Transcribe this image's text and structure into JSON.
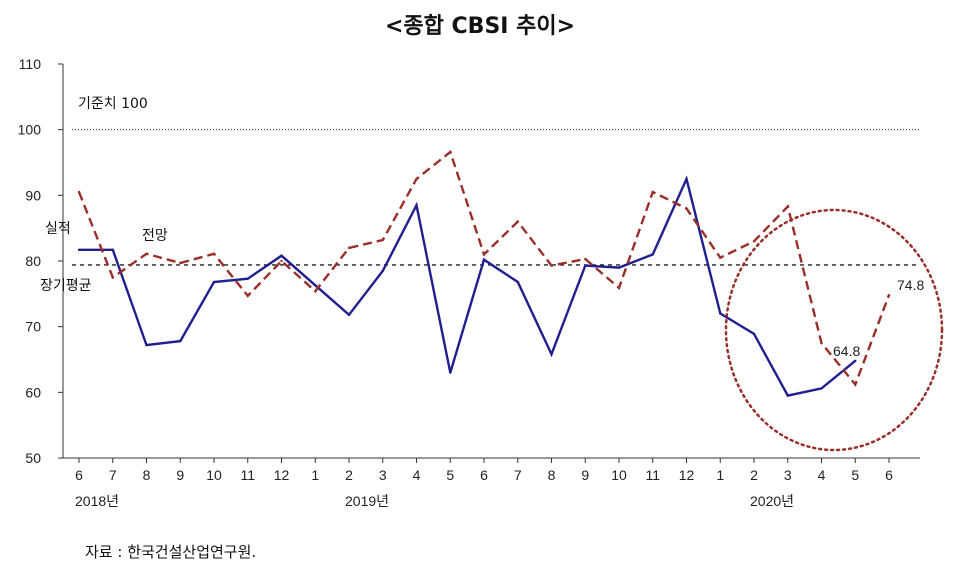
{
  "title": "<종합 CBSI 추이>",
  "source": "자료 : 한국건설산업연구원.",
  "chart_data": {
    "type": "line",
    "ylim": [
      50,
      110
    ],
    "yticks": [
      "50",
      "60",
      "70",
      "80",
      "90",
      "100",
      "110"
    ],
    "categories": [
      "6",
      "7",
      "8",
      "9",
      "10",
      "11",
      "12",
      "1",
      "2",
      "3",
      "4",
      "5",
      "6",
      "7",
      "8",
      "9",
      "10",
      "11",
      "12",
      "1",
      "2",
      "3",
      "4",
      "5",
      "6"
    ],
    "year_labels": [
      {
        "index": 0,
        "text": "2018년"
      },
      {
        "index": 8,
        "text": "2019년"
      },
      {
        "index": 20,
        "text": "2020년"
      }
    ],
    "series": [
      {
        "name": "실적",
        "color": "#1f1f8f",
        "dash": "solid",
        "values": [
          81.7,
          81.7,
          67.2,
          67.8,
          76.8,
          77.3,
          80.8,
          76.3,
          71.8,
          78.5,
          88.5,
          63.0,
          80.2,
          76.8,
          65.8,
          79.3,
          79.0,
          81.0,
          92.5,
          72.0,
          68.9,
          59.5,
          60.6,
          64.8,
          null
        ]
      },
      {
        "name": "전망",
        "color": "#9a2f2a",
        "dash": "dashed",
        "values": [
          90.5,
          77.5,
          81.1,
          79.7,
          81.1,
          74.7,
          80.0,
          75.4,
          82.0,
          83.2,
          92.5,
          96.6,
          81.0,
          86.0,
          79.3,
          80.3,
          75.9,
          90.5,
          88.0,
          80.5,
          83.0,
          88.3,
          67.5,
          61.2,
          74.8
        ]
      }
    ],
    "reference_lines": [
      {
        "label": "기준치 100",
        "value": 100,
        "style": "dotted"
      },
      {
        "label": "장기평균",
        "value": 79.4,
        "style": "dashed"
      }
    ],
    "annotations": [
      "74.8",
      "64.8"
    ],
    "grid": false
  }
}
